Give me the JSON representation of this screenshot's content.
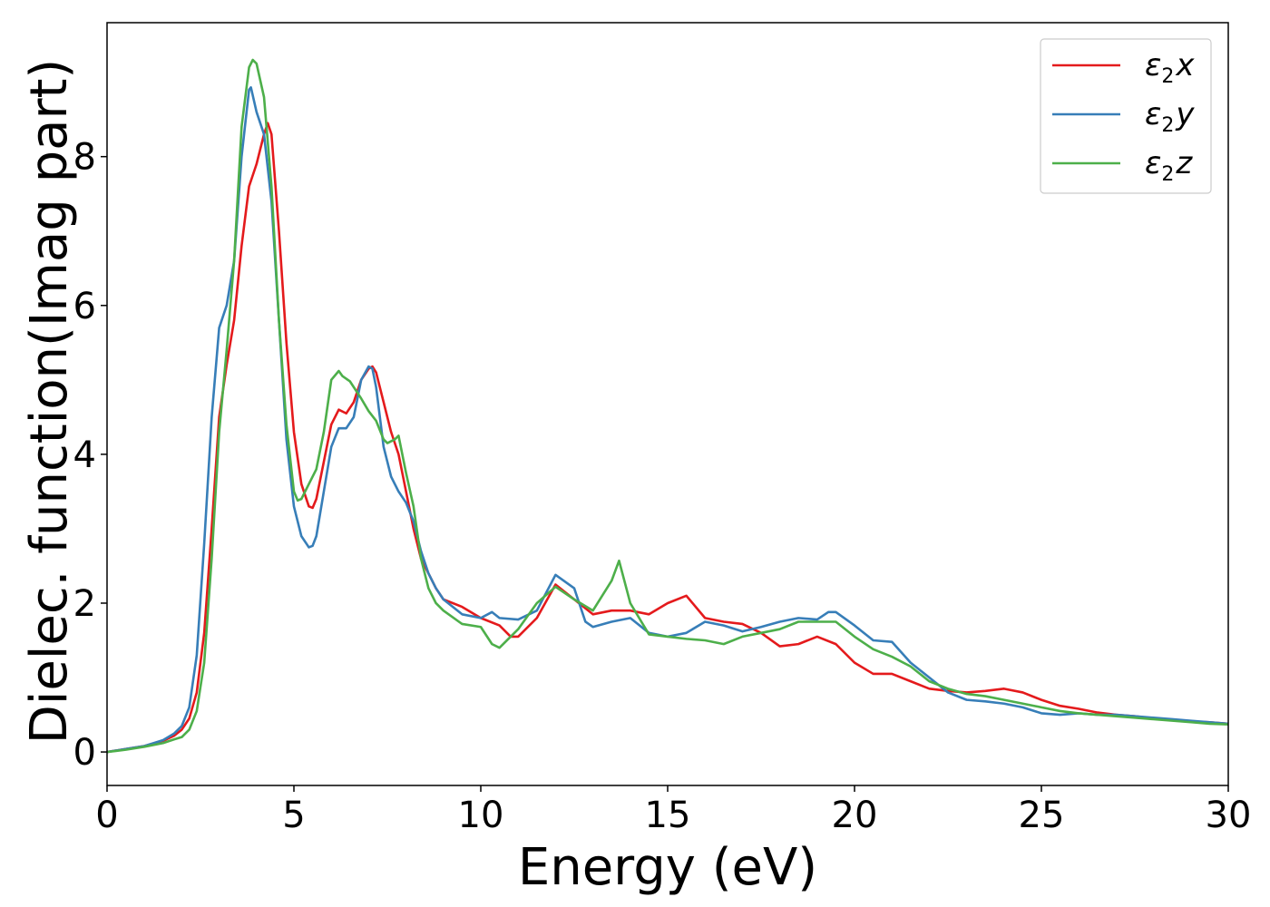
{
  "chart_data": {
    "type": "line",
    "title": "",
    "xlabel": "Energy (eV)",
    "ylabel": "Dielec. function(Imag part)",
    "xlim": [
      0,
      30
    ],
    "ylim": [
      -0.45,
      9.8
    ],
    "xticks": [
      0,
      5,
      10,
      15,
      20,
      25,
      30
    ],
    "yticks": [
      0,
      2,
      4,
      6,
      8
    ],
    "grid": false,
    "legend_position": "top-right",
    "series": [
      {
        "name": "ε2x",
        "legend_parts": {
          "base": "ε",
          "sub": "2",
          "tail": "x"
        },
        "color": "#e41a1c",
        "x": [
          0,
          0.5,
          1,
          1.5,
          1.8,
          2,
          2.2,
          2.4,
          2.6,
          2.8,
          3.0,
          3.2,
          3.4,
          3.6,
          3.8,
          4.0,
          4.1,
          4.2,
          4.3,
          4.4,
          4.6,
          4.8,
          5.0,
          5.2,
          5.4,
          5.5,
          5.6,
          5.8,
          6.0,
          6.2,
          6.4,
          6.6,
          6.8,
          7.0,
          7.1,
          7.2,
          7.4,
          7.6,
          7.8,
          8.0,
          8.2,
          8.4,
          8.6,
          8.8,
          9.0,
          9.5,
          10.0,
          10.5,
          10.8,
          11.0,
          11.5,
          12.0,
          12.5,
          13.0,
          13.5,
          14.0,
          14.5,
          15.0,
          15.5,
          16.0,
          16.5,
          17.0,
          17.5,
          18.0,
          18.5,
          19.0,
          19.5,
          20.0,
          20.5,
          21.0,
          21.5,
          22.0,
          22.5,
          23.0,
          23.5,
          24.0,
          24.5,
          25.0,
          25.5,
          26.0,
          26.5,
          27.0,
          27.5,
          28.0,
          28.5,
          29.0,
          29.5,
          30.0
        ],
        "y": [
          0,
          0.04,
          0.08,
          0.15,
          0.22,
          0.3,
          0.45,
          0.8,
          1.6,
          3.0,
          4.5,
          5.2,
          5.8,
          6.8,
          7.6,
          7.9,
          8.1,
          8.3,
          8.45,
          8.3,
          7.0,
          5.5,
          4.3,
          3.6,
          3.3,
          3.28,
          3.4,
          3.9,
          4.4,
          4.6,
          4.55,
          4.7,
          5.0,
          5.15,
          5.18,
          5.1,
          4.7,
          4.3,
          4.0,
          3.5,
          3.0,
          2.6,
          2.4,
          2.2,
          2.05,
          1.95,
          1.8,
          1.7,
          1.55,
          1.55,
          1.8,
          2.25,
          2.05,
          1.85,
          1.9,
          1.9,
          1.85,
          2.0,
          2.1,
          1.8,
          1.75,
          1.72,
          1.6,
          1.42,
          1.45,
          1.55,
          1.45,
          1.2,
          1.05,
          1.05,
          0.95,
          0.85,
          0.82,
          0.8,
          0.82,
          0.85,
          0.8,
          0.7,
          0.62,
          0.58,
          0.53,
          0.5,
          0.48,
          0.45,
          0.43,
          0.41,
          0.4,
          0.38
        ]
      },
      {
        "name": "ε2y",
        "legend_parts": {
          "base": "ε",
          "sub": "2",
          "tail": "y"
        },
        "color": "#377eb8",
        "x": [
          0,
          0.5,
          1,
          1.5,
          1.8,
          2,
          2.2,
          2.4,
          2.6,
          2.8,
          3.0,
          3.2,
          3.4,
          3.6,
          3.8,
          3.85,
          4.0,
          4.2,
          4.4,
          4.6,
          4.8,
          5.0,
          5.2,
          5.4,
          5.5,
          5.6,
          5.8,
          6.0,
          6.2,
          6.4,
          6.6,
          6.8,
          7.0,
          7.1,
          7.2,
          7.4,
          7.6,
          7.8,
          8.0,
          8.2,
          8.4,
          8.6,
          8.8,
          9.0,
          9.5,
          10.0,
          10.3,
          10.5,
          11.0,
          11.5,
          12.0,
          12.5,
          12.8,
          13.0,
          13.5,
          14.0,
          14.5,
          15.0,
          15.5,
          16.0,
          16.5,
          17.0,
          17.5,
          18.0,
          18.5,
          19.0,
          19.3,
          19.5,
          20.0,
          20.5,
          21.0,
          21.5,
          22.0,
          22.5,
          23.0,
          23.5,
          24.0,
          24.5,
          25.0,
          25.5,
          26.0,
          26.5,
          27.0,
          27.5,
          28.0,
          28.5,
          29.0,
          29.5,
          30.0
        ],
        "y": [
          0,
          0.04,
          0.08,
          0.16,
          0.25,
          0.35,
          0.6,
          1.3,
          2.8,
          4.5,
          5.7,
          6.0,
          6.6,
          8.0,
          8.9,
          8.93,
          8.6,
          8.3,
          7.4,
          5.8,
          4.2,
          3.3,
          2.9,
          2.75,
          2.77,
          2.9,
          3.5,
          4.1,
          4.35,
          4.35,
          4.5,
          5.0,
          5.18,
          5.15,
          4.9,
          4.1,
          3.7,
          3.5,
          3.35,
          3.1,
          2.7,
          2.4,
          2.2,
          2.05,
          1.85,
          1.8,
          1.88,
          1.8,
          1.78,
          1.9,
          2.38,
          2.2,
          1.75,
          1.68,
          1.75,
          1.8,
          1.6,
          1.55,
          1.6,
          1.75,
          1.7,
          1.62,
          1.68,
          1.75,
          1.8,
          1.78,
          1.88,
          1.88,
          1.7,
          1.5,
          1.48,
          1.2,
          1.0,
          0.8,
          0.7,
          0.68,
          0.65,
          0.6,
          0.52,
          0.5,
          0.52,
          0.5,
          0.5,
          0.48,
          0.46,
          0.44,
          0.42,
          0.4,
          0.38
        ]
      },
      {
        "name": "ε2z",
        "legend_parts": {
          "base": "ε",
          "sub": "2",
          "tail": "z"
        },
        "color": "#4daf4a",
        "x": [
          0,
          0.5,
          1,
          1.5,
          1.8,
          2,
          2.2,
          2.4,
          2.6,
          2.8,
          3.0,
          3.2,
          3.4,
          3.6,
          3.8,
          3.9,
          4.0,
          4.2,
          4.4,
          4.6,
          4.8,
          5.0,
          5.1,
          5.2,
          5.4,
          5.6,
          5.8,
          6.0,
          6.2,
          6.3,
          6.5,
          6.8,
          7.0,
          7.2,
          7.4,
          7.5,
          7.7,
          7.8,
          8.0,
          8.2,
          8.4,
          8.6,
          8.8,
          9.0,
          9.5,
          10.0,
          10.3,
          10.5,
          11.0,
          11.5,
          12.0,
          12.5,
          13.0,
          13.5,
          13.7,
          14.0,
          14.5,
          15.0,
          15.5,
          16.0,
          16.5,
          17.0,
          17.5,
          18.0,
          18.5,
          19.0,
          19.5,
          20.0,
          20.5,
          21.0,
          21.5,
          22.0,
          22.5,
          23.0,
          23.5,
          24.0,
          24.5,
          25.0,
          25.5,
          26.0,
          26.5,
          27.0,
          27.5,
          28.0,
          28.5,
          29.0,
          29.5,
          30.0
        ],
        "y": [
          0,
          0.03,
          0.07,
          0.12,
          0.17,
          0.2,
          0.3,
          0.55,
          1.2,
          2.6,
          4.3,
          5.4,
          6.6,
          8.4,
          9.2,
          9.3,
          9.25,
          8.8,
          7.6,
          5.8,
          4.4,
          3.5,
          3.38,
          3.4,
          3.6,
          3.8,
          4.3,
          5.0,
          5.12,
          5.05,
          4.98,
          4.75,
          4.58,
          4.45,
          4.2,
          4.15,
          4.2,
          4.25,
          3.75,
          3.3,
          2.6,
          2.2,
          2.0,
          1.9,
          1.72,
          1.68,
          1.45,
          1.4,
          1.65,
          2.0,
          2.22,
          2.05,
          1.9,
          2.3,
          2.57,
          2.0,
          1.58,
          1.55,
          1.52,
          1.5,
          1.45,
          1.55,
          1.6,
          1.65,
          1.75,
          1.75,
          1.75,
          1.55,
          1.38,
          1.28,
          1.15,
          0.95,
          0.85,
          0.78,
          0.75,
          0.7,
          0.65,
          0.6,
          0.55,
          0.52,
          0.5,
          0.48,
          0.46,
          0.44,
          0.42,
          0.4,
          0.38,
          0.37
        ]
      }
    ]
  }
}
